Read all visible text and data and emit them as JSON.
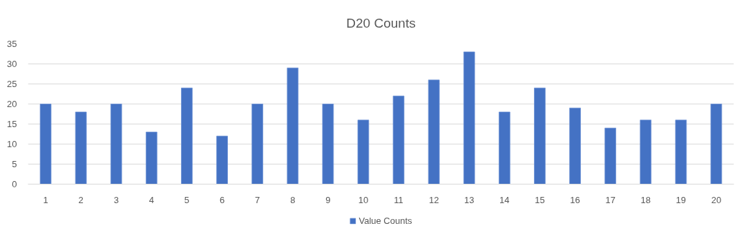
{
  "chart_data": {
    "type": "bar",
    "title": "D20 Counts",
    "categories": [
      "1",
      "2",
      "3",
      "4",
      "5",
      "6",
      "7",
      "8",
      "9",
      "10",
      "11",
      "12",
      "13",
      "14",
      "15",
      "16",
      "17",
      "18",
      "19",
      "20"
    ],
    "series": [
      {
        "name": "Value Counts",
        "color": "#4472c4",
        "values": [
          20,
          18,
          20,
          13,
          24,
          12,
          20,
          29,
          20,
          16,
          22,
          26,
          33,
          18,
          24,
          19,
          14,
          16,
          16,
          20
        ]
      }
    ],
    "ylim": [
      0,
      35
    ],
    "yticks": [
      0,
      5,
      10,
      15,
      20,
      25,
      30,
      35
    ],
    "grid": "y",
    "legend": "bottom"
  }
}
